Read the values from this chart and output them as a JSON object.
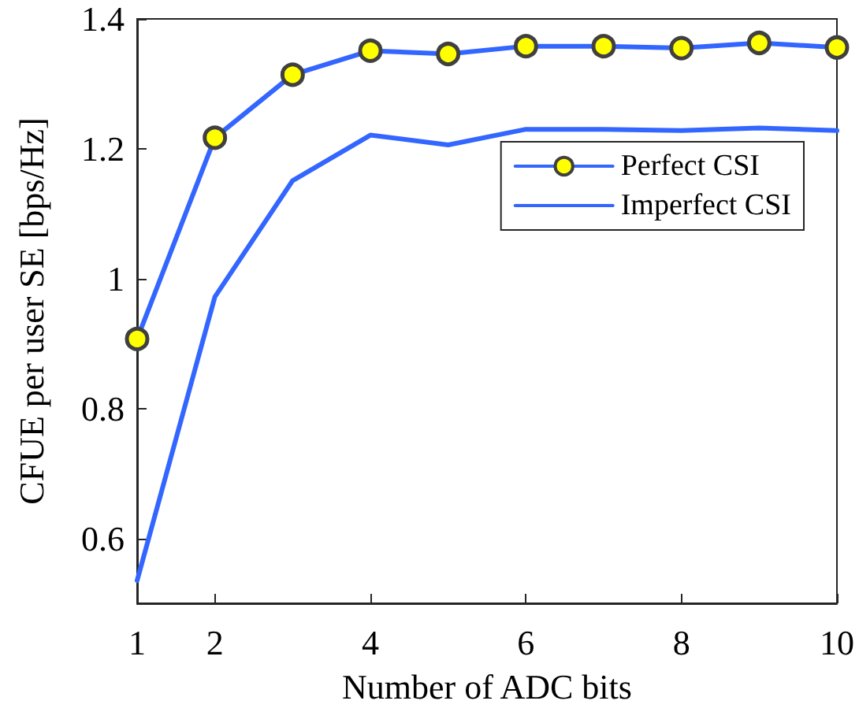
{
  "chart_data": {
    "type": "line",
    "xlabel": "Number of ADC bits",
    "ylabel": "CFUE per user SE [bps/Hz]",
    "x": [
      1,
      2,
      3,
      4,
      5,
      6,
      7,
      8,
      9,
      10
    ],
    "series": [
      {
        "name": "Perfect CSI",
        "color": "#3366ff",
        "marker": "circle",
        "values": [
          0.907,
          1.217,
          1.314,
          1.351,
          1.346,
          1.358,
          1.358,
          1.355,
          1.363,
          1.356
        ]
      },
      {
        "name": "Imperfect CSI",
        "color": "#3366ff",
        "marker": "none",
        "values": [
          0.535,
          0.972,
          1.151,
          1.221,
          1.206,
          1.23,
          1.23,
          1.228,
          1.232,
          1.228
        ]
      }
    ],
    "xlim": [
      1,
      10
    ],
    "xticks": [
      1,
      2,
      4,
      6,
      8,
      10
    ],
    "ylim": [
      0.5,
      1.4
    ],
    "yticks": [
      0.6,
      0.8,
      1,
      1.2,
      1.4
    ],
    "grid": false,
    "legend": "top right",
    "line_style": "solid"
  }
}
